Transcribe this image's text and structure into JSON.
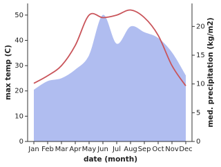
{
  "chart_data": {
    "type": "line",
    "x_label": "date (month)",
    "y_label": "max temp (C)",
    "y2_label": "med. precipitation (kg/m2)",
    "categories": [
      "Jan",
      "Feb",
      "Mar",
      "Apr",
      "May",
      "Jun",
      "Jul",
      "Aug",
      "Sep",
      "Oct",
      "Nov",
      "Dec"
    ],
    "series": [
      {
        "name": "med. precipitation",
        "kind": "area",
        "axis": "y2",
        "color": "#b0bdf0",
        "values": [
          9,
          10.5,
          11,
          12.5,
          15,
          22,
          17,
          20,
          19,
          18,
          15.5,
          11.5
        ]
      },
      {
        "name": "max temp",
        "kind": "line",
        "axis": "y",
        "color": "#c9545a",
        "values": [
          23,
          26,
          30,
          38,
          50,
          49,
          50,
          52,
          49,
          42,
          30,
          22
        ]
      }
    ],
    "ylim": [
      0,
      54.6
    ],
    "yticks": [
      0,
      10,
      20,
      30,
      40,
      50
    ],
    "y2lim": [
      0,
      24
    ],
    "y2ticks": [
      0,
      5,
      10,
      15,
      20
    ]
  }
}
